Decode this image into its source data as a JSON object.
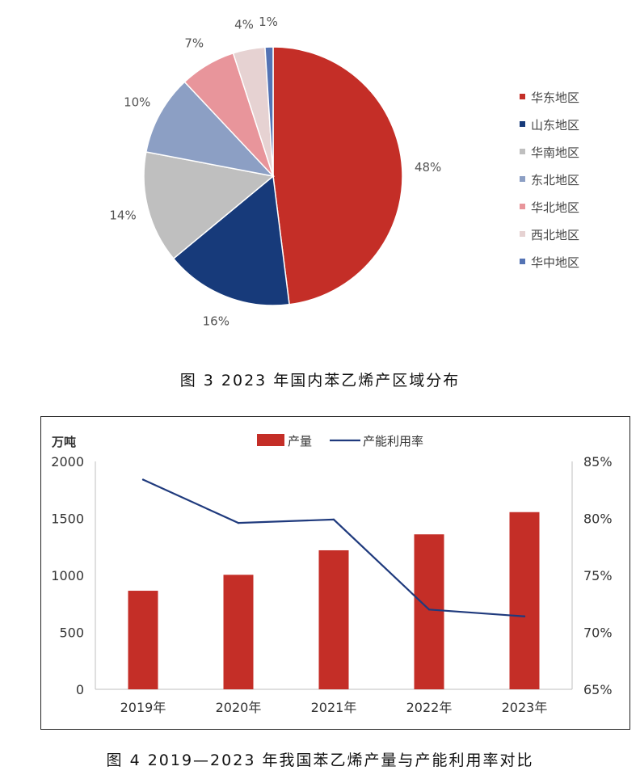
{
  "figure1": {
    "caption": "图 3  2023 年国内苯乙烯产区域分布",
    "chart_data": {
      "type": "pie",
      "categories": [
        "华东地区",
        "山东地区",
        "华南地区",
        "东北地区",
        "华北地区",
        "西北地区",
        "华中地区"
      ],
      "values": [
        48,
        16,
        14,
        10,
        7,
        4,
        1
      ],
      "value_labels": [
        "48%",
        "16%",
        "14%",
        "10%",
        "7%",
        "4%",
        "1%"
      ],
      "colors": [
        "#c42e27",
        "#173a7a",
        "#bfbfbf",
        "#8c9fc4",
        "#e8959b",
        "#e6d2d2",
        "#5473b4"
      ],
      "legend_position": "right"
    }
  },
  "figure2": {
    "caption": "图 4  2019—2023 年我国苯乙烯产量与产能利用率对比",
    "chart_data": {
      "type": "bar+line",
      "categories": [
        "2019年",
        "2020年",
        "2021年",
        "2022年",
        "2023年"
      ],
      "series": [
        {
          "name": "产量",
          "type": "bar",
          "axis": "left",
          "values": [
            865,
            1005,
            1220,
            1360,
            1555
          ],
          "color": "#c42e27"
        },
        {
          "name": "产能利用率",
          "type": "line",
          "axis": "right",
          "values": [
            83.4,
            79.6,
            79.9,
            72.0,
            71.4
          ],
          "color": "#1f3a7d"
        }
      ],
      "ylabel": "万吨",
      "ylim": [
        0,
        2000
      ],
      "yticks": [
        "0",
        "500",
        "1000",
        "1500",
        "2000"
      ],
      "y2lim": [
        65,
        85
      ],
      "y2ticks": [
        "65%",
        "70%",
        "75%",
        "80%",
        "85%"
      ],
      "legend_position": "top"
    }
  }
}
